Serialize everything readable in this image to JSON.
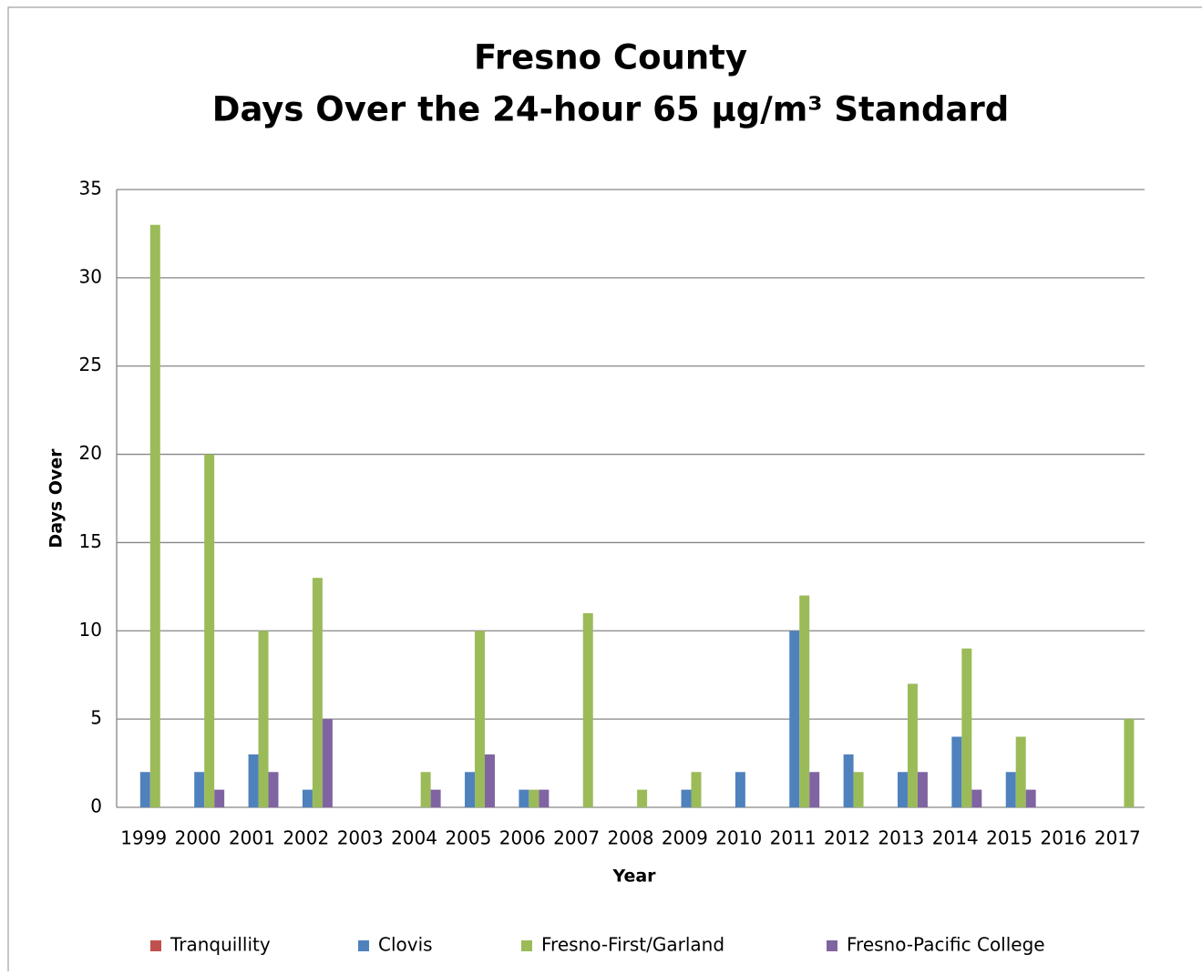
{
  "chart_data": {
    "type": "bar",
    "title": [
      "Fresno County",
      "Days Over the 24-hour 65 µg/m³ Standard"
    ],
    "x_label": "Year",
    "y_label": "Days Over",
    "categories": [
      "1999",
      "2000",
      "2001",
      "2002",
      "2003",
      "2004",
      "2005",
      "2006",
      "2007",
      "2008",
      "2009",
      "2010",
      "2011",
      "2012",
      "2013",
      "2014",
      "2015",
      "2016",
      "2017"
    ],
    "series": [
      {
        "name": "Tranquillity",
        "color": "#c0504d",
        "values": [
          0,
          0,
          0,
          0,
          0,
          0,
          0,
          0,
          0,
          0,
          0,
          0,
          0,
          0,
          0,
          0,
          0,
          0,
          0
        ]
      },
      {
        "name": "Clovis",
        "color": "#4f81bd",
        "values": [
          2,
          2,
          3,
          1,
          0,
          0,
          2,
          1,
          0,
          0,
          1,
          2,
          10,
          3,
          2,
          4,
          2,
          0,
          0
        ]
      },
      {
        "name": "Fresno-First/Garland",
        "color": "#9bbb59",
        "values": [
          33,
          20,
          10,
          13,
          0,
          2,
          10,
          1,
          11,
          1,
          2,
          0,
          12,
          2,
          7,
          9,
          4,
          0,
          5
        ]
      },
      {
        "name": "Fresno-Pacific College",
        "color": "#8064a2",
        "values": [
          0,
          1,
          2,
          5,
          0,
          1,
          3,
          1,
          0,
          0,
          0,
          0,
          2,
          0,
          2,
          1,
          1,
          0,
          0
        ]
      }
    ],
    "ylim": [
      0,
      35
    ],
    "yticks": [
      0,
      5,
      10,
      15,
      20,
      25,
      30,
      35
    ],
    "grid": true,
    "legend": "bottom"
  }
}
